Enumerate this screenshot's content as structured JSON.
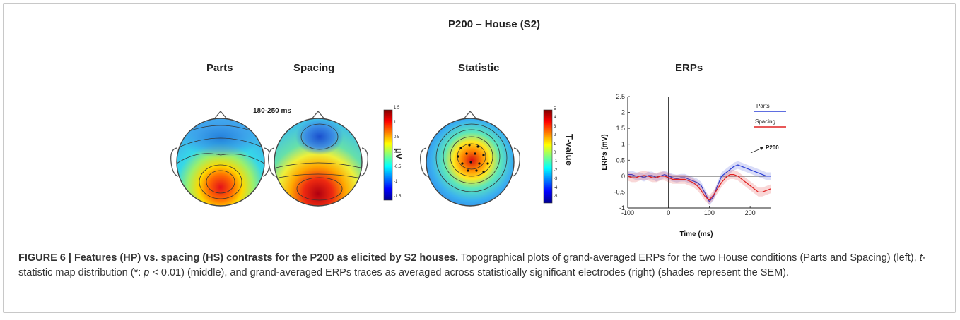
{
  "figure": {
    "main_title": "P200 – House (S2)",
    "panels": {
      "parts": "Parts",
      "spacing": "Spacing",
      "statistic": "Statistic",
      "erps": "ERPs"
    },
    "time_window": "180-250 ms",
    "colorbar_uv": {
      "unit": "µV",
      "ticks": [
        "1.5",
        "1",
        "0.5",
        "0",
        "-0.5",
        "-1",
        "-1.5"
      ]
    },
    "colorbar_t": {
      "unit": "T-value",
      "ticks": [
        "5",
        "4",
        "3",
        "2",
        "1",
        "0",
        "-1",
        "-2",
        "-3",
        "-4",
        "-5"
      ]
    }
  },
  "chart_data": {
    "type": "line",
    "xlabel": "Time (ms)",
    "ylabel": "ERPs (mV)",
    "xlim": [
      -100,
      250
    ],
    "ylim": [
      -1,
      2.5
    ],
    "xticks": [
      "-100",
      "0",
      "100",
      "200"
    ],
    "xtick_values": [
      -100,
      0,
      100,
      200
    ],
    "yticks": [
      "2.5",
      "2",
      "1.5",
      "1",
      "0.5",
      "0",
      "-0.5",
      "-1"
    ],
    "ytick_values": [
      2.5,
      2,
      1.5,
      1,
      0.5,
      0,
      -0.5,
      -1
    ],
    "annotation": "P200",
    "legend": "top-right",
    "series": [
      {
        "name": "Parts",
        "color": "#2a3fd6",
        "x": [
          -100,
          -90,
          -80,
          -70,
          -60,
          -50,
          -40,
          -30,
          -20,
          -10,
          0,
          10,
          20,
          30,
          40,
          50,
          60,
          70,
          80,
          90,
          100,
          110,
          120,
          130,
          140,
          150,
          160,
          170,
          180,
          190,
          200,
          210,
          220,
          230,
          240,
          250
        ],
        "y": [
          0.05,
          0.05,
          0.0,
          0.0,
          -0.05,
          0.02,
          0.02,
          -0.05,
          0.0,
          0.05,
          0.0,
          -0.05,
          -0.08,
          -0.05,
          -0.05,
          -0.1,
          -0.15,
          -0.2,
          -0.3,
          -0.55,
          -0.8,
          -0.65,
          -0.3,
          0.0,
          0.1,
          0.2,
          0.3,
          0.35,
          0.3,
          0.25,
          0.2,
          0.15,
          0.1,
          0.05,
          0.0,
          0.0
        ],
        "sem": 0.12
      },
      {
        "name": "Spacing",
        "color": "#e02020",
        "x": [
          -100,
          -90,
          -80,
          -70,
          -60,
          -50,
          -40,
          -30,
          -20,
          -10,
          0,
          10,
          20,
          30,
          40,
          50,
          60,
          70,
          80,
          90,
          100,
          110,
          120,
          130,
          140,
          150,
          160,
          170,
          180,
          190,
          200,
          210,
          220,
          230,
          240,
          250
        ],
        "y": [
          0.0,
          -0.05,
          -0.05,
          0.0,
          0.02,
          0.0,
          -0.05,
          -0.05,
          0.0,
          0.0,
          -0.05,
          -0.1,
          -0.1,
          -0.1,
          -0.1,
          -0.15,
          -0.2,
          -0.3,
          -0.45,
          -0.65,
          -0.75,
          -0.6,
          -0.4,
          -0.2,
          -0.05,
          0.05,
          0.05,
          0.0,
          -0.1,
          -0.2,
          -0.3,
          -0.4,
          -0.5,
          -0.5,
          -0.45,
          -0.4
        ],
        "sem": 0.14
      }
    ]
  },
  "caption": {
    "lead": "FIGURE 6 | Features (HP) vs. spacing (HS) contrasts for the P200 as elicited by S2 houses.",
    "body_1": " Topographical plots of grand-averaged ERPs for the two House conditions (Parts and Spacing) (left), ",
    "body_t": "t",
    "body_2": "-statistic map distribution (*: ",
    "body_p": "p",
    "body_3": " < 0.01) (middle), and grand-averaged ERPs traces as averaged across statistically significant electrodes (right) (shades represent the SEM)."
  }
}
